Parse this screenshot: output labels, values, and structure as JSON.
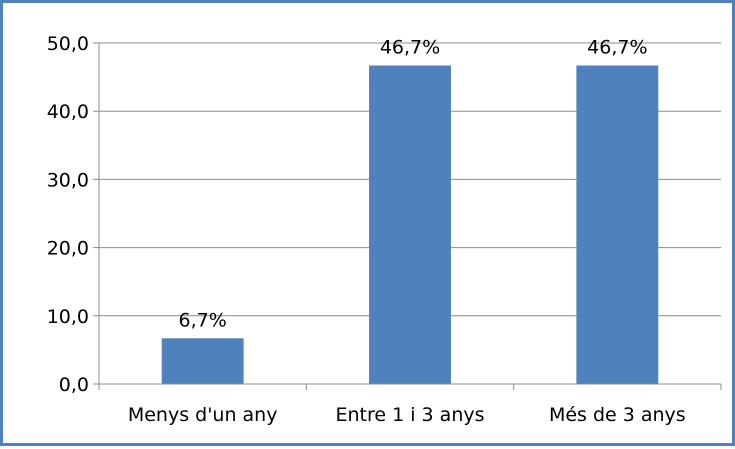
{
  "chart_data": {
    "type": "bar",
    "title": "",
    "xlabel": "",
    "ylabel": "",
    "categories": [
      "Menys d'un any",
      "Entre 1 i 3 anys",
      "Més de 3 anys"
    ],
    "values": [
      6.7,
      46.7,
      46.7
    ],
    "data_labels": [
      "6,7%",
      "46,7%",
      "46,7%"
    ],
    "ylim": [
      0,
      50
    ],
    "y_ticks": [
      0,
      10,
      20,
      30,
      40,
      50
    ],
    "y_tick_labels": [
      "0,0",
      "10,0",
      "20,0",
      "30,0",
      "40,0",
      "50,0"
    ],
    "grid": true,
    "legend": "none",
    "colors": {
      "bar": "#4f81bd",
      "border": "#4f81bd",
      "grid": "#8c8c8c"
    }
  }
}
